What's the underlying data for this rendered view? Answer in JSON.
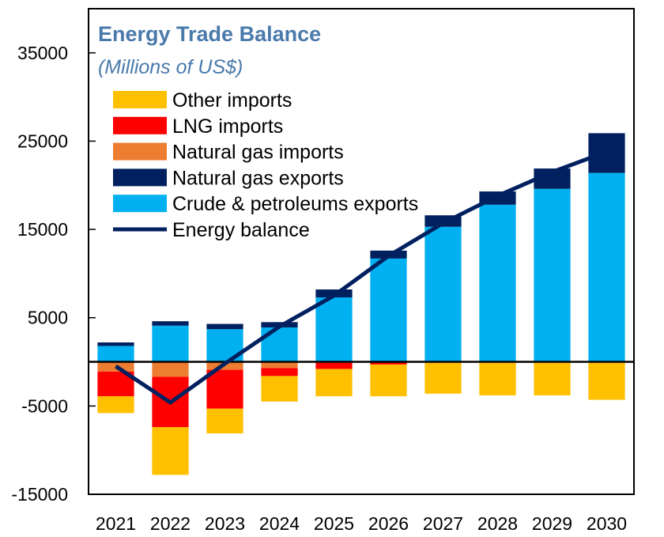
{
  "chart_data": {
    "type": "bar",
    "stacked": true,
    "title": "Energy Trade Balance",
    "subtitle": "(Millions of US$)",
    "xlabel": "",
    "ylabel": "",
    "ylim": [
      -15000,
      40000
    ],
    "yticks": [
      35000,
      25000,
      15000,
      5000,
      -5000,
      -15000
    ],
    "categories": [
      "2021",
      "2022",
      "2023",
      "2024",
      "2025",
      "2026",
      "2027",
      "2028",
      "2029",
      "2030"
    ],
    "series": [
      {
        "name": "Other imports",
        "color": "#ffc000",
        "kind": "bar",
        "values": [
          -1900,
          -5400,
          -2800,
          -2900,
          -3100,
          -3600,
          -3600,
          -3800,
          -3800,
          -4300
        ]
      },
      {
        "name": "LNG imports",
        "color": "#ff0000",
        "kind": "bar",
        "values": [
          -2800,
          -5700,
          -4400,
          -900,
          -700,
          -300,
          0,
          0,
          0,
          0
        ]
      },
      {
        "name": "Natural gas imports",
        "color": "#ed7d31",
        "kind": "bar",
        "values": [
          -1100,
          -1700,
          -900,
          -700,
          -100,
          0,
          0,
          0,
          0,
          0
        ]
      },
      {
        "name": "Natural gas exports",
        "color": "#002060",
        "kind": "bar",
        "values": [
          400,
          500,
          600,
          600,
          900,
          900,
          1300,
          1500,
          2300,
          4500
        ]
      },
      {
        "name": "Crude & petroleums exports",
        "color": "#00b0f0",
        "kind": "bar",
        "values": [
          1800,
          4100,
          3700,
          3900,
          7300,
          11700,
          15300,
          17800,
          19600,
          21400
        ]
      },
      {
        "name": "Energy balance",
        "color": "#002060",
        "kind": "line",
        "values": [
          -500,
          -4600,
          -200,
          4000,
          7500,
          12000,
          15700,
          18800,
          21500,
          23800
        ]
      }
    ],
    "legend_position": "top-left",
    "grid": false
  }
}
